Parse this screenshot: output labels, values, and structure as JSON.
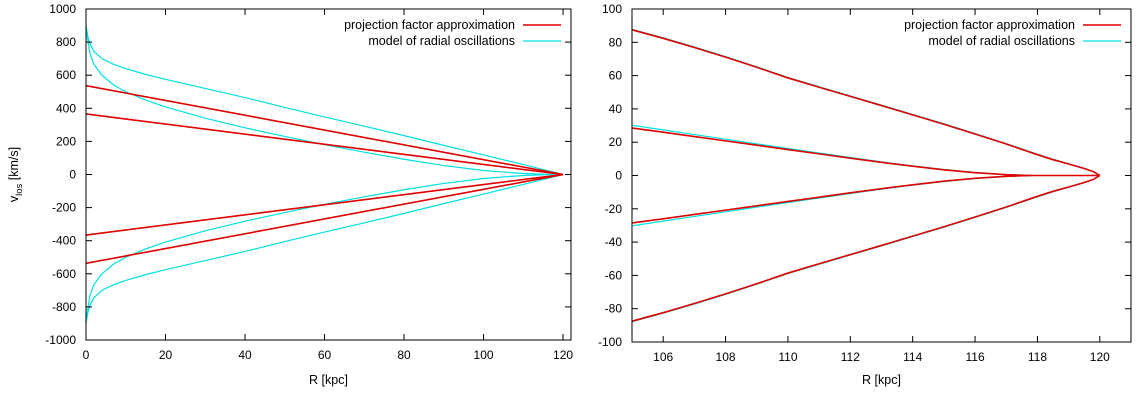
{
  "chart_data": [
    {
      "type": "line",
      "xlabel": "R [kpc]",
      "ylabel_main": "v",
      "ylabel_sub": "los",
      "ylabel_unit": " [km/s]",
      "xlim": [
        0,
        122
      ],
      "ylim": [
        -1000,
        1000
      ],
      "xticks": [
        0,
        20,
        40,
        60,
        80,
        100,
        120
      ],
      "yticks": [
        -1000,
        -800,
        -600,
        -400,
        -200,
        0,
        200,
        400,
        600,
        800,
        1000
      ],
      "xtick_labels": [
        "0",
        "20",
        "40",
        "60",
        "80",
        "100",
        "120"
      ],
      "ytick_labels": [
        "-1000",
        "-800",
        "-600",
        "-400",
        "-200",
        "0",
        "200",
        "400",
        "600",
        "800",
        "1000"
      ],
      "legend_position": "top-right",
      "grid": false,
      "series": [
        {
          "name": "projection factor approximation",
          "color": "#e00000",
          "curves": [
            {
              "x": [
                0,
                120
              ],
              "y": [
                537,
                0
              ]
            },
            {
              "x": [
                0,
                120
              ],
              "y": [
                366,
                0
              ]
            },
            {
              "x": [
                0,
                120
              ],
              "y": [
                -366,
                0
              ]
            },
            {
              "x": [
                0,
                120
              ],
              "y": [
                -537,
                0
              ]
            }
          ]
        },
        {
          "name": "model of radial oscillations",
          "color": "#00e0e0",
          "curves": [
            {
              "x": [
                0,
                0.5,
                1,
                2,
                4,
                7,
                10,
                15,
                20,
                30,
                40,
                50,
                60,
                70,
                80,
                90,
                100,
                110,
                115,
                118,
                120
              ],
              "y": [
                900,
                830,
                790,
                745,
                700,
                665,
                640,
                605,
                575,
                520,
                465,
                405,
                348,
                292,
                235,
                176,
                118,
                60,
                30,
                12,
                0
              ]
            },
            {
              "x": [
                0,
                0.5,
                1,
                2,
                4,
                7,
                10,
                15,
                20,
                30,
                40,
                50,
                60,
                70,
                80,
                90,
                100,
                110,
                115,
                118,
                120
              ],
              "y": [
                -900,
                -830,
                -790,
                -745,
                -700,
                -665,
                -640,
                -605,
                -575,
                -520,
                -465,
                -405,
                -348,
                -292,
                -235,
                -176,
                -118,
                -60,
                -30,
                -12,
                0
              ]
            },
            {
              "x": [
                0,
                1,
                2,
                4,
                7,
                10,
                15,
                20,
                30,
                40,
                50,
                60,
                70,
                80,
                90,
                100,
                110,
                115,
                118
              ],
              "y": [
                880,
                730,
                665,
                600,
                540,
                500,
                450,
                408,
                340,
                282,
                230,
                180,
                135,
                92,
                54,
                24,
                6,
                2,
                0
              ]
            },
            {
              "x": [
                0,
                1,
                2,
                4,
                7,
                10,
                15,
                20,
                30,
                40,
                50,
                60,
                70,
                80,
                90,
                100,
                110,
                115,
                118
              ],
              "y": [
                -880,
                -730,
                -665,
                -600,
                -540,
                -500,
                -450,
                -408,
                -340,
                -282,
                -230,
                -180,
                -135,
                -92,
                -54,
                -24,
                -6,
                -2,
                0
              ]
            }
          ]
        }
      ]
    },
    {
      "type": "line",
      "xlabel": "R [kpc]",
      "xlim": [
        105,
        121
      ],
      "ylim": [
        -100,
        100
      ],
      "xticks": [
        106,
        108,
        110,
        112,
        114,
        116,
        118,
        120
      ],
      "yticks": [
        -100,
        -80,
        -60,
        -40,
        -20,
        0,
        20,
        40,
        60,
        80,
        100
      ],
      "xtick_labels": [
        "106",
        "108",
        "110",
        "112",
        "114",
        "116",
        "118",
        "120"
      ],
      "ytick_labels": [
        "-100",
        "-80",
        "-60",
        "-40",
        "-20",
        "0",
        "20",
        "40",
        "60",
        "80",
        "100"
      ],
      "legend_position": "top-right",
      "grid": false,
      "series": [
        {
          "name": "projection factor approximation",
          "color": "#e00000",
          "curves": [
            {
              "x": [
                105,
                106,
                107,
                108,
                109,
                110,
                111,
                112,
                113,
                114,
                115,
                116,
                117,
                118,
                118.5,
                119,
                119.5,
                119.8,
                120
              ],
              "y": [
                87.5,
                82.4,
                76.9,
                71.1,
                65.0,
                58.6,
                53.0,
                47.5,
                42.0,
                36.4,
                30.8,
                24.9,
                18.9,
                12.5,
                9.5,
                6.9,
                4.2,
                2.3,
                0
              ]
            },
            {
              "x": [
                105,
                106,
                107,
                108,
                109,
                110,
                111,
                112,
                113,
                114,
                115,
                116,
                117,
                118,
                118.5,
                119,
                119.5,
                119.8,
                120
              ],
              "y": [
                -87.5,
                -82.4,
                -76.9,
                -71.1,
                -65.0,
                -58.6,
                -53.0,
                -47.5,
                -42.0,
                -36.4,
                -30.8,
                -24.9,
                -18.9,
                -12.5,
                -9.5,
                -6.9,
                -4.2,
                -2.3,
                0
              ]
            },
            {
              "x": [
                105,
                106,
                107,
                108,
                109,
                110,
                111,
                112,
                113,
                114,
                115,
                116,
                117,
                117.8
              ],
              "y": [
                28.5,
                26.0,
                23.4,
                20.8,
                18.2,
                15.6,
                13.0,
                10.4,
                7.9,
                5.6,
                3.4,
                1.7,
                0.5,
                0
              ]
            },
            {
              "x": [
                105,
                106,
                107,
                108,
                109,
                110,
                111,
                112,
                113,
                114,
                115,
                116,
                117,
                117.8
              ],
              "y": [
                -28.5,
                -26.0,
                -23.4,
                -20.8,
                -18.2,
                -15.6,
                -13.0,
                -10.4,
                -7.9,
                -5.6,
                -3.4,
                -1.7,
                -0.5,
                0
              ]
            },
            {
              "x": [
                117.8,
                120
              ],
              "y": [
                0,
                0
              ]
            }
          ]
        },
        {
          "name": "model of radial oscillations",
          "color": "#00e0e0",
          "curves": [
            {
              "x": [
                105,
                106,
                107,
                108,
                109,
                110,
                111,
                112,
                113,
                114,
                115,
                116,
                117,
                118,
                118.5,
                119,
                119.5,
                119.8,
                120
              ],
              "y": [
                87.8,
                82.7,
                77.2,
                71.4,
                65.3,
                58.9,
                53.3,
                47.8,
                42.3,
                36.7,
                31.1,
                25.2,
                19.2,
                12.8,
                9.8,
                7.1,
                4.4,
                2.4,
                0
              ]
            },
            {
              "x": [
                105,
                106,
                107,
                108,
                109,
                110,
                111,
                112,
                113,
                114,
                115,
                116,
                117,
                118,
                118.5,
                119,
                119.5,
                119.8,
                120
              ],
              "y": [
                -87.8,
                -82.7,
                -77.2,
                -71.4,
                -65.3,
                -58.9,
                -53.3,
                -47.8,
                -42.3,
                -36.7,
                -31.1,
                -25.2,
                -19.2,
                -12.8,
                -9.8,
                -7.1,
                -4.4,
                -2.4,
                0
              ]
            },
            {
              "x": [
                105,
                106,
                107,
                108,
                109,
                110,
                111,
                112,
                113,
                114,
                115,
                116,
                117,
                117.8
              ],
              "y": [
                30.2,
                27.4,
                24.6,
                21.8,
                19.0,
                16.2,
                13.5,
                10.8,
                8.2,
                5.8,
                3.6,
                1.8,
                0.6,
                0
              ]
            },
            {
              "x": [
                105,
                106,
                107,
                108,
                109,
                110,
                111,
                112,
                113,
                114,
                115,
                116,
                117,
                117.8
              ],
              "y": [
                -30.2,
                -27.4,
                -24.6,
                -21.8,
                -19.0,
                -16.2,
                -13.5,
                -10.8,
                -8.2,
                -5.8,
                -3.6,
                -1.8,
                -0.6,
                0
              ]
            }
          ]
        }
      ]
    }
  ]
}
